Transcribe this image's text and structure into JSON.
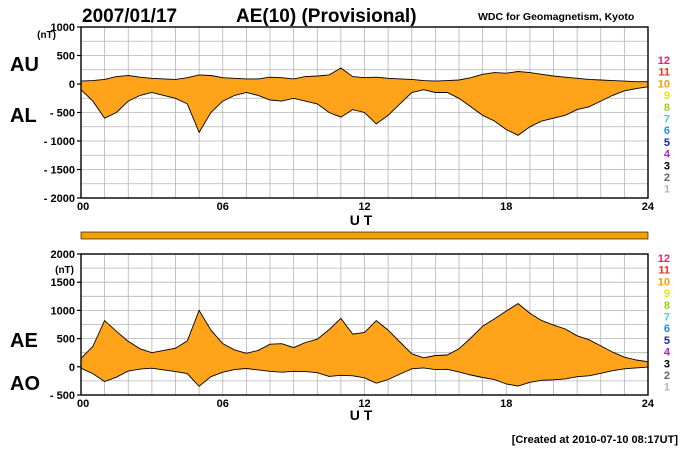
{
  "header": {
    "date": "2007/01/17",
    "index_title": "AE(10) (Provisional)",
    "source": "WDC for Geomagnetism, Kyoto"
  },
  "footer": {
    "created": "[Created at 2010-07-10 08:17UT]"
  },
  "colors": {
    "fill": "#ffa31a",
    "grid": "#b4b4b4",
    "curve": "#000000"
  },
  "activity_scale": {
    "levels": [
      {
        "label": "12",
        "color": "#e8207a"
      },
      {
        "label": "11",
        "color": "#e8321e"
      },
      {
        "label": "10",
        "color": "#f0a000"
      },
      {
        "label": "9",
        "color": "#e6e600"
      },
      {
        "label": "8",
        "color": "#96d21e"
      },
      {
        "label": "7",
        "color": "#3cd2d2"
      },
      {
        "label": "6",
        "color": "#1e8ce6"
      },
      {
        "label": "5",
        "color": "#1e1eb4"
      },
      {
        "label": "4",
        "color": "#b41ed2"
      },
      {
        "label": "3",
        "color": "#000000"
      },
      {
        "label": "2",
        "color": "#646464"
      },
      {
        "label": "1",
        "color": "#b4b4b4"
      }
    ]
  },
  "activity_bar": {
    "level": "10",
    "fraction": 1.0
  },
  "chart_data": [
    {
      "type": "area",
      "unit": "(nT)",
      "xlabel": "U T",
      "ylabel_top": "AU",
      "ylabel_bottom": "AL",
      "xlim": [
        0,
        24
      ],
      "ylim": [
        -2000,
        1000
      ],
      "yticks": [
        1000,
        500,
        0,
        -500,
        -1000,
        -1500,
        -2000
      ],
      "ytick_labels": [
        "1000",
        "500",
        "0",
        "- 500",
        "- 1000",
        "- 1500",
        "- 2000"
      ],
      "xticks": [
        0,
        6,
        12,
        18,
        24
      ],
      "xtick_labels": [
        "00",
        "06",
        "12",
        "18",
        "24"
      ],
      "grid": true,
      "series": [
        {
          "name": "AU",
          "x": [
            0,
            0.5,
            1,
            1.5,
            2,
            2.5,
            3,
            3.5,
            4,
            4.5,
            5,
            5.5,
            6,
            6.5,
            7,
            7.5,
            8,
            8.5,
            9,
            9.5,
            10,
            10.5,
            11,
            11.5,
            12,
            12.5,
            13,
            13.5,
            14,
            14.5,
            15,
            15.5,
            16,
            16.5,
            17,
            17.5,
            18,
            18.5,
            19,
            19.5,
            20,
            20.5,
            21,
            21.5,
            22,
            22.5,
            23,
            23.5,
            24
          ],
          "values": [
            50,
            60,
            80,
            130,
            150,
            120,
            100,
            90,
            80,
            110,
            160,
            150,
            110,
            100,
            90,
            90,
            120,
            110,
            90,
            130,
            140,
            160,
            280,
            130,
            110,
            120,
            100,
            90,
            80,
            60,
            50,
            60,
            70,
            110,
            170,
            200,
            190,
            220,
            200,
            170,
            140,
            120,
            100,
            80,
            70,
            60,
            50,
            40,
            40
          ]
        },
        {
          "name": "AL",
          "x": [
            0,
            0.5,
            1,
            1.5,
            2,
            2.5,
            3,
            3.5,
            4,
            4.5,
            5,
            5.5,
            6,
            6.5,
            7,
            7.5,
            8,
            8.5,
            9,
            9.5,
            10,
            10.5,
            11,
            11.5,
            12,
            12.5,
            13,
            13.5,
            14,
            14.5,
            15,
            15.5,
            16,
            16.5,
            17,
            17.5,
            18,
            18.5,
            19,
            19.5,
            20,
            20.5,
            21,
            21.5,
            22,
            22.5,
            23,
            23.5,
            24
          ],
          "values": [
            -100,
            -300,
            -600,
            -500,
            -300,
            -200,
            -150,
            -200,
            -250,
            -350,
            -850,
            -500,
            -300,
            -200,
            -150,
            -200,
            -280,
            -300,
            -250,
            -300,
            -350,
            -500,
            -580,
            -450,
            -500,
            -700,
            -550,
            -350,
            -150,
            -100,
            -150,
            -150,
            -250,
            -400,
            -550,
            -650,
            -800,
            -900,
            -750,
            -650,
            -600,
            -550,
            -450,
            -400,
            -300,
            -200,
            -120,
            -80,
            -50
          ]
        }
      ]
    },
    {
      "type": "area",
      "unit": "(nT)",
      "xlabel": "U T",
      "ylabel_top": "AE",
      "ylabel_bottom": "AO",
      "xlim": [
        0,
        24
      ],
      "ylim": [
        -500,
        2000
      ],
      "yticks": [
        2000,
        1500,
        1000,
        500,
        0,
        -500
      ],
      "ytick_labels": [
        "2000",
        "1500",
        "1000",
        "500",
        "0",
        "- 500"
      ],
      "xticks": [
        0,
        6,
        12,
        18,
        24
      ],
      "xtick_labels": [
        "00",
        "06",
        "12",
        "18",
        "24"
      ],
      "grid": true,
      "series": [
        {
          "name": "AE",
          "x": [
            0,
            0.5,
            1,
            1.5,
            2,
            2.5,
            3,
            3.5,
            4,
            4.5,
            5,
            5.5,
            6,
            6.5,
            7,
            7.5,
            8,
            8.5,
            9,
            9.5,
            10,
            10.5,
            11,
            11.5,
            12,
            12.5,
            13,
            13.5,
            14,
            14.5,
            15,
            15.5,
            16,
            16.5,
            17,
            17.5,
            18,
            18.5,
            19,
            19.5,
            20,
            20.5,
            21,
            21.5,
            22,
            22.5,
            23,
            23.5,
            24
          ],
          "values": [
            150,
            360,
            820,
            630,
            450,
            320,
            250,
            290,
            330,
            460,
            1000,
            650,
            410,
            300,
            240,
            290,
            400,
            410,
            340,
            430,
            490,
            660,
            860,
            580,
            610,
            820,
            650,
            440,
            230,
            160,
            200,
            210,
            320,
            510,
            720,
            850,
            990,
            1120,
            950,
            820,
            740,
            670,
            550,
            480,
            370,
            260,
            170,
            120,
            90
          ]
        },
        {
          "name": "AO",
          "x": [
            0,
            0.5,
            1,
            1.5,
            2,
            2.5,
            3,
            3.5,
            4,
            4.5,
            5,
            5.5,
            6,
            6.5,
            7,
            7.5,
            8,
            8.5,
            9,
            9.5,
            10,
            10.5,
            11,
            11.5,
            12,
            12.5,
            13,
            13.5,
            14,
            14.5,
            15,
            15.5,
            16,
            16.5,
            17,
            17.5,
            18,
            18.5,
            19,
            19.5,
            20,
            20.5,
            21,
            21.5,
            22,
            22.5,
            23,
            23.5,
            24
          ],
          "values": [
            -25,
            -120,
            -260,
            -185,
            -75,
            -40,
            -25,
            -55,
            -85,
            -120,
            -345,
            -175,
            -95,
            -50,
            -30,
            -55,
            -80,
            -95,
            -80,
            -85,
            -105,
            -170,
            -150,
            -160,
            -195,
            -290,
            -225,
            -130,
            -35,
            -20,
            -50,
            -45,
            -90,
            -145,
            -190,
            -225,
            -305,
            -340,
            -275,
            -240,
            -230,
            -215,
            -175,
            -160,
            -115,
            -70,
            -35,
            -20,
            -5
          ]
        }
      ]
    }
  ]
}
